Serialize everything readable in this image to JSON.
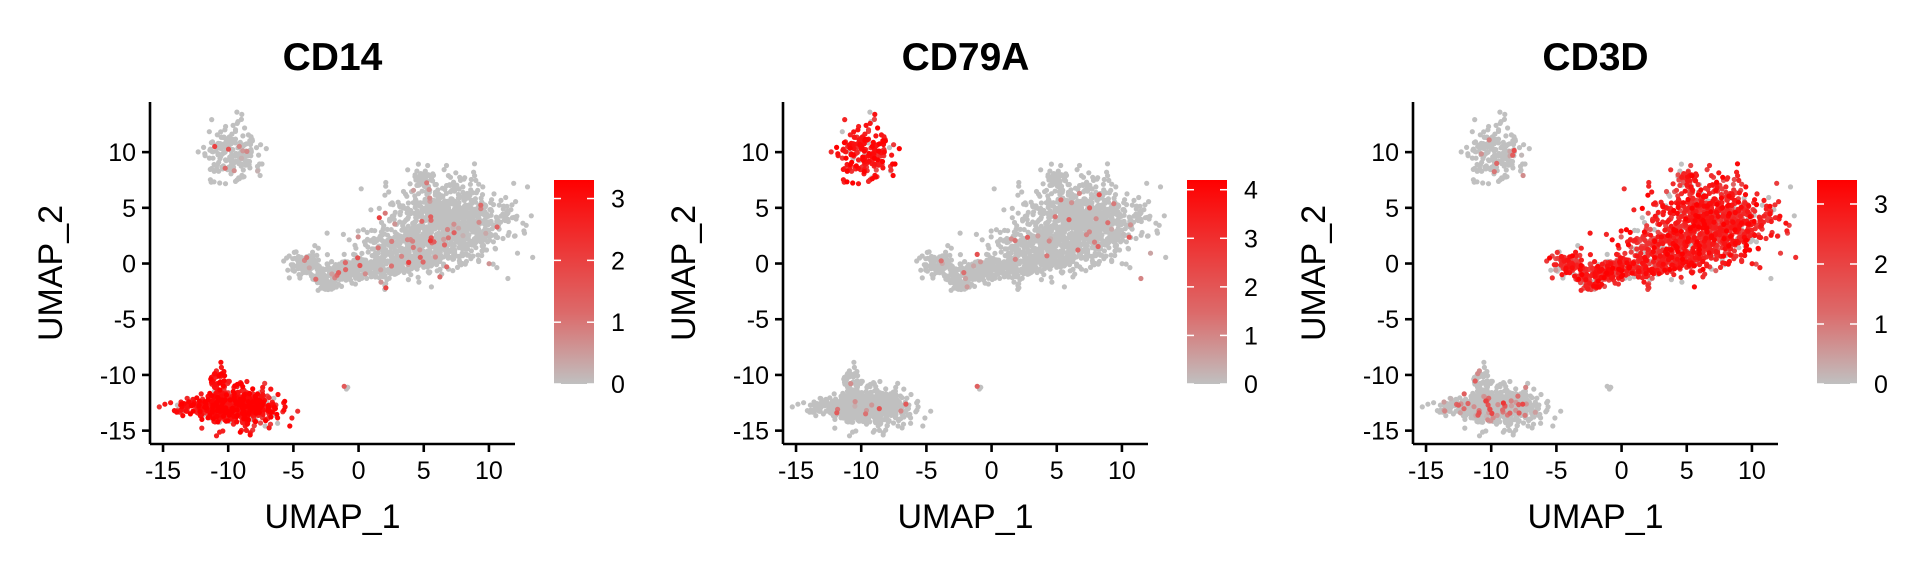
{
  "chart_data": [
    {
      "type": "scatter",
      "title": "CD14",
      "xlabel": "UMAP_1",
      "ylabel": "UMAP_2",
      "xlim": [
        -16,
        12
      ],
      "ylim": [
        -16.2,
        14.5
      ],
      "xticks": [
        -15,
        -10,
        -5,
        0,
        5,
        10
      ],
      "yticks": [
        -15,
        -10,
        -5,
        0,
        5,
        10
      ],
      "xtick_labels": [
        "-15",
        "-10",
        "-5",
        "0",
        "5",
        "10"
      ],
      "ytick_labels": [
        "-15",
        "-10",
        "-5",
        "0",
        "5",
        "10"
      ],
      "color_scale": {
        "low": "#c0c0c0",
        "high": "#ff0000",
        "min": 0,
        "max": 3.3
      },
      "legend_ticks": [
        0,
        1,
        2,
        3
      ],
      "legend_tick_labels": [
        "0",
        "1",
        "2",
        "3"
      ],
      "expression_by_cluster": {
        "B": 0.15,
        "T_NK": 0.05,
        "Mono": 2.6,
        "DC": 0.05
      },
      "legend_position": "right"
    },
    {
      "type": "scatter",
      "title": "CD79A",
      "xlabel": "UMAP_1",
      "ylabel": "UMAP_2",
      "xlim": [
        -16,
        12
      ],
      "ylim": [
        -16.2,
        14.5
      ],
      "xticks": [
        -15,
        -10,
        -5,
        0,
        5,
        10
      ],
      "yticks": [
        -15,
        -10,
        -5,
        0,
        5,
        10
      ],
      "xtick_labels": [
        "-15",
        "-10",
        "-5",
        "0",
        "5",
        "10"
      ],
      "ytick_labels": [
        "-15",
        "-10",
        "-5",
        "0",
        "5",
        "10"
      ],
      "color_scale": {
        "low": "#c0c0c0",
        "high": "#ff0000",
        "min": 0,
        "max": 4.2
      },
      "legend_ticks": [
        0,
        1,
        2,
        3,
        4
      ],
      "legend_tick_labels": [
        "0",
        "1",
        "2",
        "3",
        "4"
      ],
      "expression_by_cluster": {
        "B": 3.2,
        "T_NK": 0.03,
        "Mono": 0.0,
        "DC": 0.0
      },
      "legend_position": "right"
    },
    {
      "type": "scatter",
      "title": "CD3D",
      "xlabel": "UMAP_1",
      "ylabel": "UMAP_2",
      "xlim": [
        -16,
        12
      ],
      "ylim": [
        -16.2,
        14.5
      ],
      "xticks": [
        -15,
        -10,
        -5,
        0,
        5,
        10
      ],
      "yticks": [
        -15,
        -10,
        -5,
        0,
        5,
        10
      ],
      "xtick_labels": [
        "-15",
        "-10",
        "-5",
        "0",
        "5",
        "10"
      ],
      "ytick_labels": [
        "-15",
        "-10",
        "-5",
        "0",
        "5",
        "10"
      ],
      "color_scale": {
        "low": "#c0c0c0",
        "high": "#ff0000",
        "min": 0,
        "max": 3.4
      },
      "legend_ticks": [
        0,
        1,
        2,
        3
      ],
      "legend_tick_labels": [
        "0",
        "1",
        "2",
        "3"
      ],
      "expression_by_cluster": {
        "B": 0.1,
        "T_NK": 2.2,
        "Mono": 0.2,
        "DC": 0.0
      },
      "legend_position": "right"
    }
  ]
}
